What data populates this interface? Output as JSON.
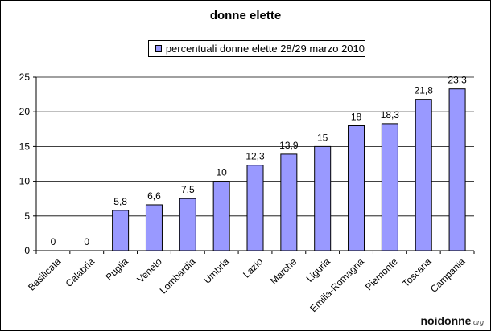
{
  "chart_data": {
    "type": "bar",
    "title": "donne elette",
    "categories": [
      "Basilicata",
      "Calabria",
      "Puglia",
      "Veneto",
      "Lombardia",
      "Umbria",
      "Lazio",
      "Marche",
      "Liguria",
      "Emilia-Romagna",
      "Piemonte",
      "Toscana",
      "Campania"
    ],
    "series": [
      {
        "name": "percentuali donne elette 28/29 marzo 2010",
        "values": [
          0,
          0,
          5.8,
          6.6,
          7.5,
          10,
          12.3,
          13.9,
          15,
          18,
          18.3,
          21.8,
          23.3
        ],
        "labels": [
          "0",
          "0",
          "5,8",
          "6,6",
          "7,5",
          "10",
          "12,3",
          "13,9",
          "15",
          "18",
          "18,3",
          "21,8",
          "23,3"
        ]
      }
    ],
    "ylim": [
      0,
      25
    ],
    "yticks": [
      0,
      5,
      10,
      15,
      20,
      25
    ],
    "grid": true,
    "legend_position": "top",
    "colors": {
      "bar": "#9999ff",
      "bar_border": "#000000",
      "grid": "#000000"
    }
  },
  "logo": {
    "main": "noidonne",
    "suffix": ".org"
  }
}
